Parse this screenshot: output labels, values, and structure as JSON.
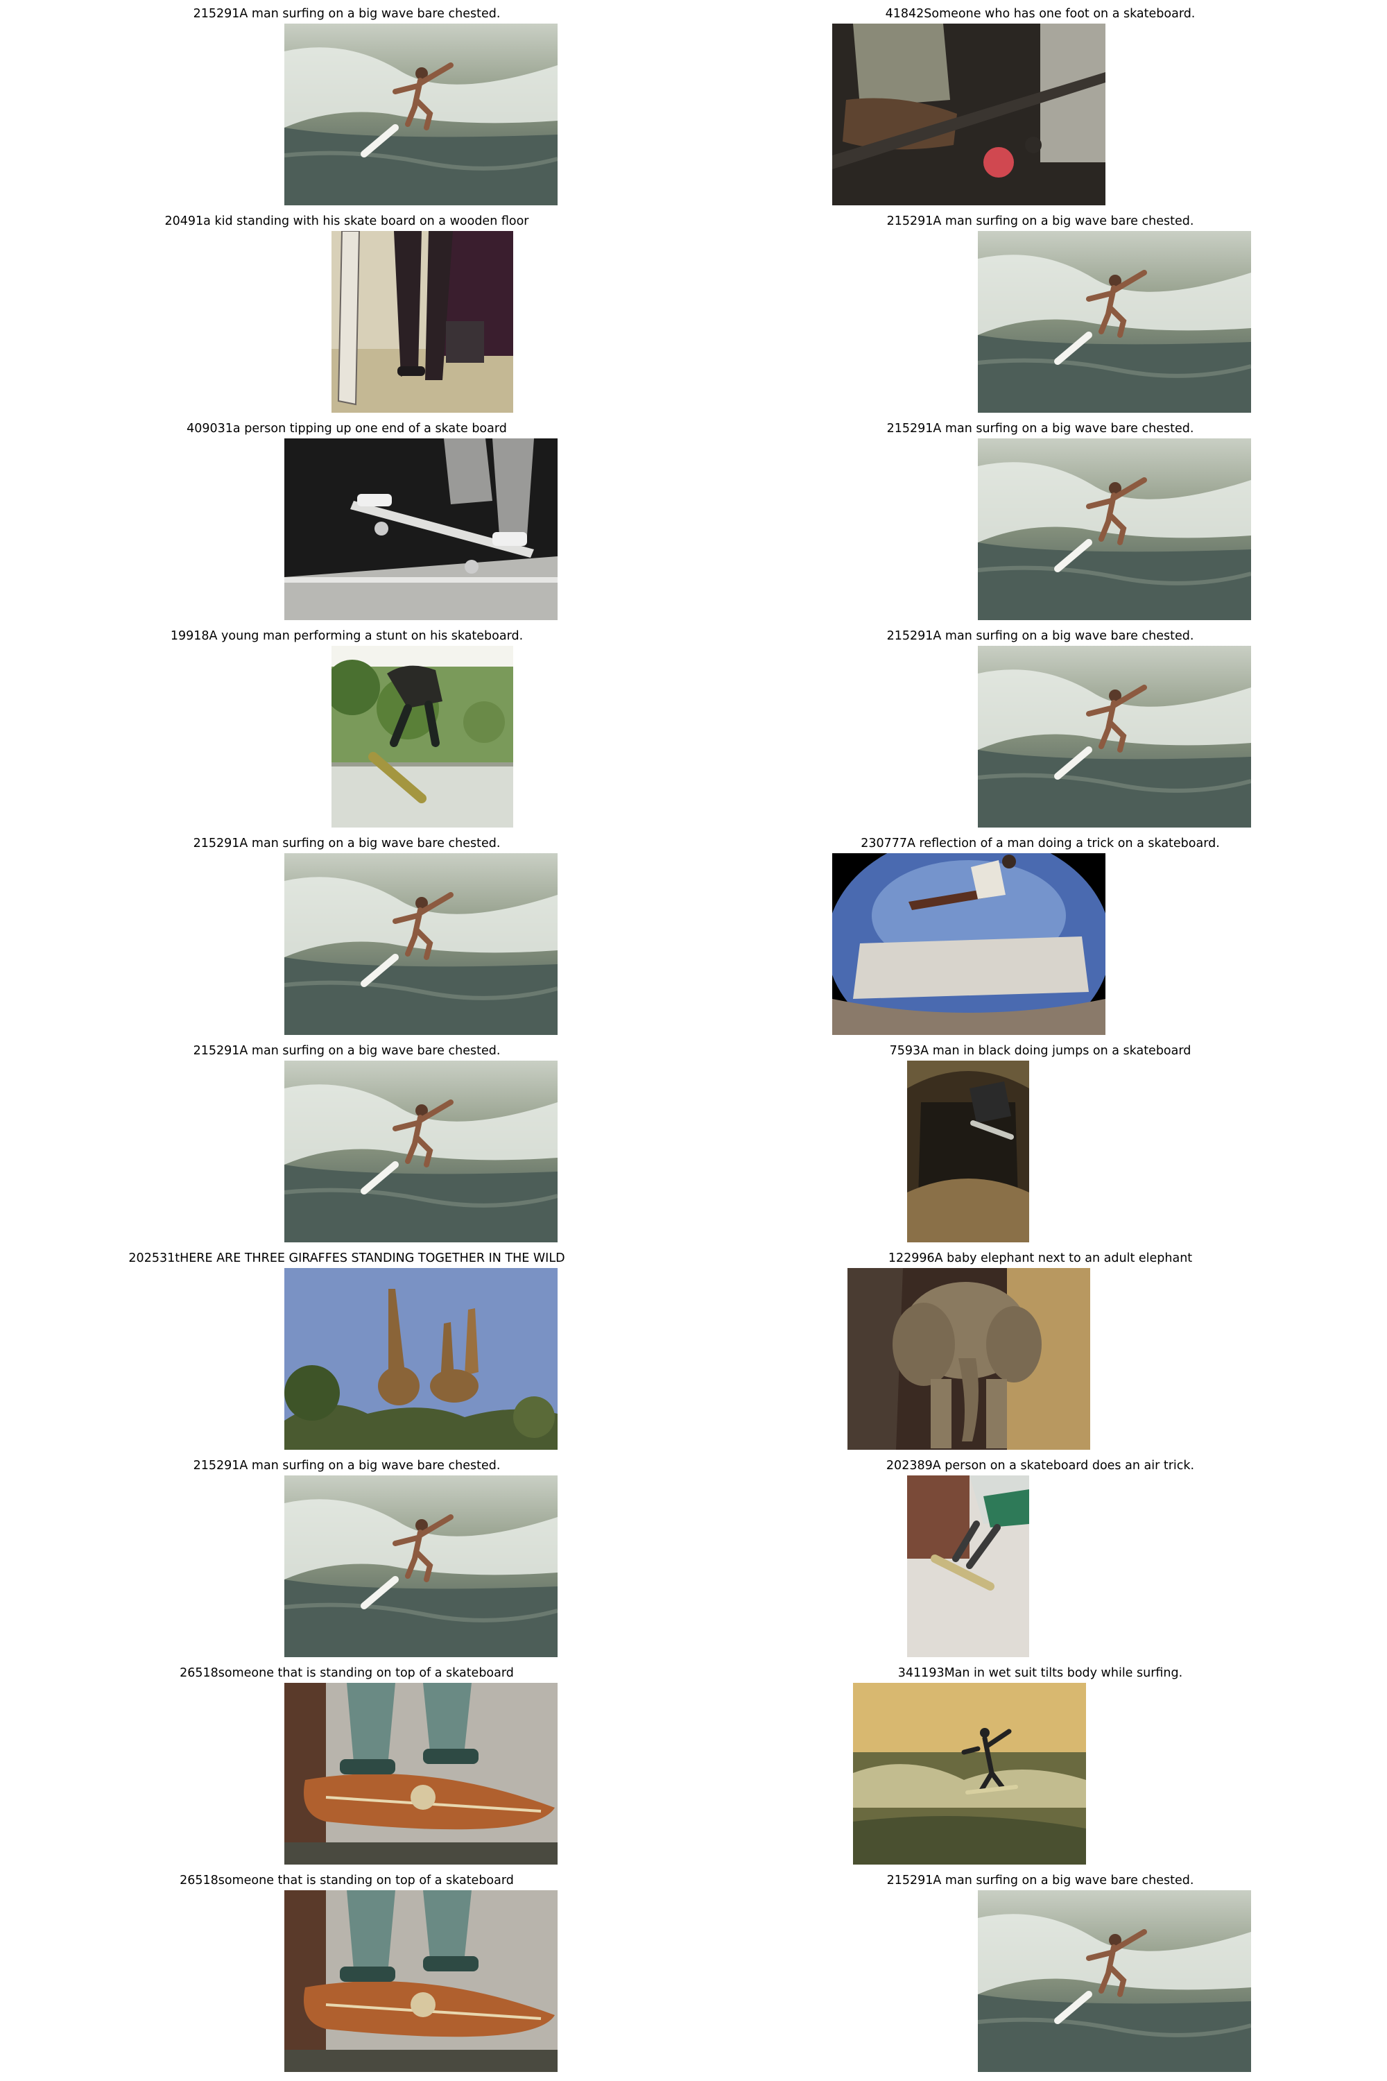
{
  "cells": [
    {
      "caption": "215291A man surfing on a big wave bare chested.",
      "scene": "surf"
    },
    {
      "caption": "41842Someone who has one foot on a skateboard.",
      "scene": "skate-foot"
    },
    {
      "caption": "20491a kid standing with his skate board on a wooden floor",
      "scene": "kid-board"
    },
    {
      "caption": "215291A man surfing on a big wave bare chested.",
      "scene": "surf"
    },
    {
      "caption": "409031a person tipping up one end of a skate board",
      "scene": "bw-skate"
    },
    {
      "caption": "215291A man surfing on a big wave bare chested.",
      "scene": "surf"
    },
    {
      "caption": "19918A young man performing a stunt on his skateboard.",
      "scene": "stunt"
    },
    {
      "caption": "215291A man surfing on a big wave bare chested.",
      "scene": "surf"
    },
    {
      "caption": "215291A man surfing on a big wave bare chested.",
      "scene": "surf"
    },
    {
      "caption": "230777A reflection of a man doing a trick on a skateboard.",
      "scene": "fisheye"
    },
    {
      "caption": "215291A man surfing on a big wave bare chested.",
      "scene": "surf"
    },
    {
      "caption": "7593A man in black doing jumps on a skateboard",
      "scene": "halfpipe"
    },
    {
      "caption": "202531tHERE ARE THREE GIRAFFES STANDING TOGETHER IN THE WILD",
      "scene": "giraffes"
    },
    {
      "caption": "122996A baby elephant next to an adult elephant",
      "scene": "elephant"
    },
    {
      "caption": "215291A man surfing on a big wave bare chested.",
      "scene": "surf"
    },
    {
      "caption": "202389A person on a skateboard does an air trick.",
      "scene": "air-trick"
    },
    {
      "caption": "26518someone that is standing on top of a skateboard",
      "scene": "longboard"
    },
    {
      "caption": "341193Man in wet suit tilts body while surfing.",
      "scene": "sunset-surf"
    },
    {
      "caption": "26518someone that is standing on top of a skateboard",
      "scene": "longboard"
    },
    {
      "caption": "215291A man surfing on a big wave bare chested.",
      "scene": "surf"
    }
  ]
}
